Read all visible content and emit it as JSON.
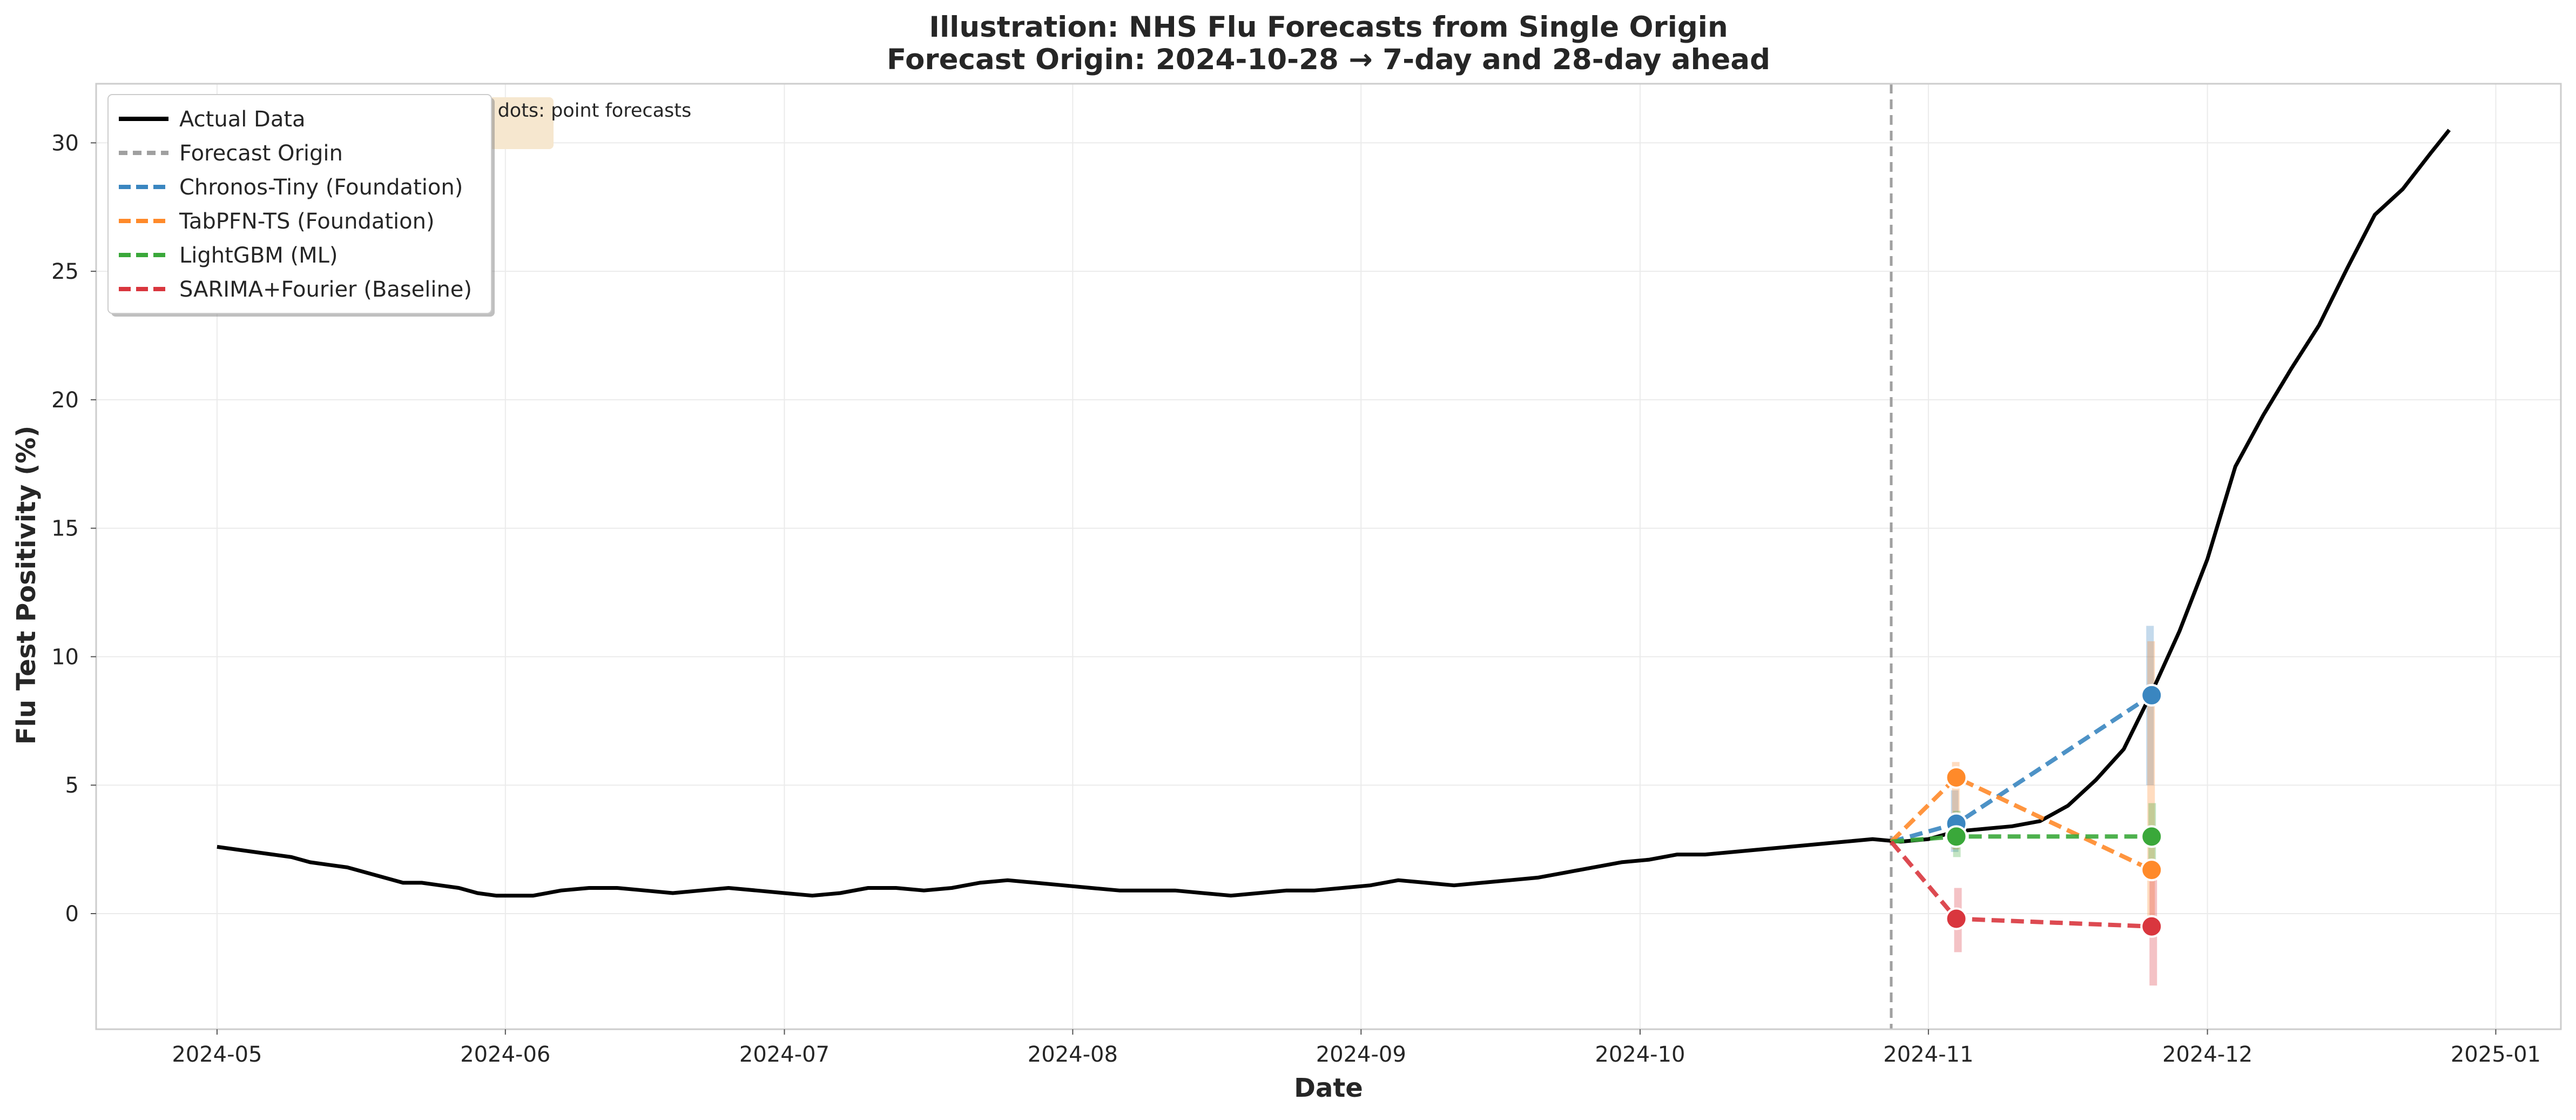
{
  "chart_data": {
    "type": "line",
    "title": "Illustration: NHS Flu Forecasts from Single Origin",
    "subtitle": "Forecast Origin: 2024-10-28 → 7-day and 28-day ahead",
    "xlabel": "Date",
    "ylabel": "Flu Test Positivity (%)",
    "xlim": [
      "2024-04-18",
      "2025-01-08"
    ],
    "ylim": [
      -4.5,
      32.3
    ],
    "x_ticks": [
      "2024-05",
      "2024-06",
      "2024-07",
      "2024-08",
      "2024-09",
      "2024-10",
      "2024-11",
      "2024-12",
      "2025-01"
    ],
    "y_ticks": [
      0,
      5,
      10,
      15,
      20,
      25,
      30
    ],
    "grid": true,
    "legend_position": "top-left",
    "note": "Vertical bars: 80% prediction intervals; dots: point forecasts",
    "forecast_origin": "2024-10-28",
    "actual": {
      "name": "Actual Data",
      "color": "#000000",
      "x": [
        "2024-05-01",
        "2024-05-03",
        "2024-05-05",
        "2024-05-07",
        "2024-05-09",
        "2024-05-11",
        "2024-05-13",
        "2024-05-15",
        "2024-05-17",
        "2024-05-19",
        "2024-05-21",
        "2024-05-23",
        "2024-05-25",
        "2024-05-27",
        "2024-05-29",
        "2024-05-31",
        "2024-06-01",
        "2024-06-04",
        "2024-06-07",
        "2024-06-10",
        "2024-06-13",
        "2024-06-16",
        "2024-06-19",
        "2024-06-22",
        "2024-06-25",
        "2024-06-28",
        "2024-07-01",
        "2024-07-04",
        "2024-07-07",
        "2024-07-10",
        "2024-07-13",
        "2024-07-16",
        "2024-07-19",
        "2024-07-22",
        "2024-07-25",
        "2024-07-28",
        "2024-07-31",
        "2024-08-03",
        "2024-08-06",
        "2024-08-09",
        "2024-08-12",
        "2024-08-15",
        "2024-08-18",
        "2024-08-21",
        "2024-08-24",
        "2024-08-27",
        "2024-08-30",
        "2024-09-02",
        "2024-09-05",
        "2024-09-08",
        "2024-09-11",
        "2024-09-14",
        "2024-09-17",
        "2024-09-20",
        "2024-09-23",
        "2024-09-26",
        "2024-09-29",
        "2024-10-02",
        "2024-10-05",
        "2024-10-08",
        "2024-10-11",
        "2024-10-14",
        "2024-10-17",
        "2024-10-20",
        "2024-10-23",
        "2024-10-26",
        "2024-10-29",
        "2024-11-01",
        "2024-11-04",
        "2024-11-07",
        "2024-11-10",
        "2024-11-13",
        "2024-11-16",
        "2024-11-19",
        "2024-11-22",
        "2024-11-25",
        "2024-11-28",
        "2024-12-01",
        "2024-12-04",
        "2024-12-07",
        "2024-12-10",
        "2024-12-13",
        "2024-12-16",
        "2024-12-19",
        "2024-12-22",
        "2024-12-25",
        "2024-12-27"
      ],
      "y": [
        2.6,
        2.5,
        2.4,
        2.3,
        2.2,
        2.0,
        1.9,
        1.8,
        1.6,
        1.4,
        1.2,
        1.2,
        1.1,
        1.0,
        0.8,
        0.7,
        0.7,
        0.7,
        0.9,
        1.0,
        1.0,
        0.9,
        0.8,
        0.9,
        1.0,
        0.9,
        0.8,
        0.7,
        0.8,
        1.0,
        1.0,
        0.9,
        1.0,
        1.2,
        1.3,
        1.2,
        1.1,
        1.0,
        0.9,
        0.9,
        0.9,
        0.8,
        0.7,
        0.8,
        0.9,
        0.9,
        1.0,
        1.1,
        1.3,
        1.2,
        1.1,
        1.2,
        1.3,
        1.4,
        1.6,
        1.8,
        2.0,
        2.1,
        2.3,
        2.3,
        2.4,
        2.5,
        2.6,
        2.7,
        2.8,
        2.9,
        2.8,
        2.9,
        3.2,
        3.3,
        3.4,
        3.6,
        4.2,
        5.2,
        6.4,
        8.6,
        11.0,
        13.8,
        17.4,
        19.4,
        21.2,
        22.9,
        25.1,
        27.2,
        28.2,
        29.6,
        30.5
      ]
    },
    "forecast_dates": [
      "2024-11-04",
      "2024-11-25"
    ],
    "series": [
      {
        "name": "Chronos-Tiny (Foundation)",
        "color": "#3a86c0",
        "values": [
          3.5,
          8.5
        ],
        "lower": [
          2.4,
          5.0
        ],
        "upper": [
          4.8,
          11.2
        ]
      },
      {
        "name": "TabPFN-TS (Foundation)",
        "color": "#ff8a2a",
        "values": [
          5.3,
          1.7
        ],
        "lower": [
          2.5,
          -0.5
        ],
        "upper": [
          5.9,
          10.6
        ]
      },
      {
        "name": "LightGBM (ML)",
        "color": "#3aa83a",
        "values": [
          3.0,
          3.0
        ],
        "lower": [
          2.2,
          2.0
        ],
        "upper": [
          4.0,
          4.3
        ]
      },
      {
        "name": "SARIMA+Fourier (Baseline)",
        "color": "#d9363e",
        "values": [
          -0.2,
          -0.5
        ],
        "lower": [
          -1.5,
          -2.8
        ],
        "upper": [
          1.0,
          1.5
        ]
      }
    ],
    "legend": [
      "Actual Data",
      "Forecast Origin",
      "Chronos-Tiny (Foundation)",
      "TabPFN-TS (Foundation)",
      "LightGBM (ML)",
      "SARIMA+Fourier (Baseline)"
    ],
    "colors": {
      "origin_line": "#a0a0a0",
      "grid": "#ebebeb",
      "axis_frame": "#cccccc",
      "note_bg": "#f6e7cf"
    }
  }
}
